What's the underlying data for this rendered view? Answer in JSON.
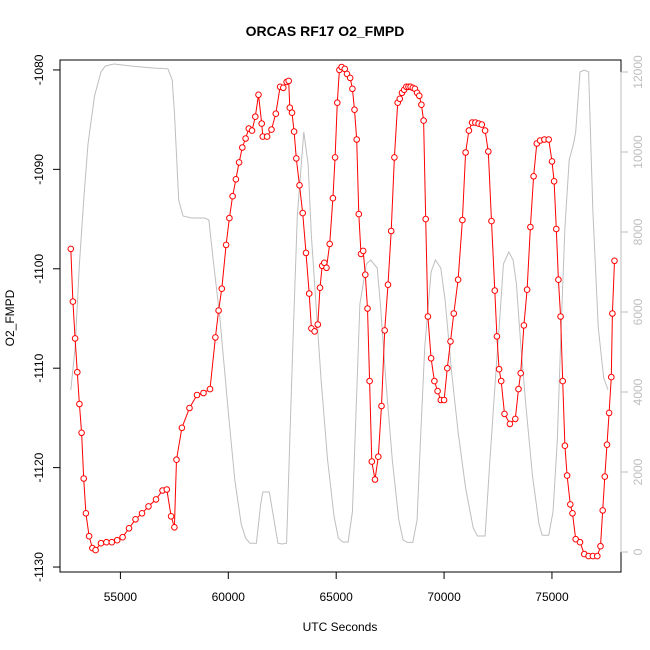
{
  "chart_data": {
    "type": "line",
    "title": "ORCAS RF17 O2_FMPD",
    "xlabel": "UTC Seconds",
    "ylabel": "O2_FMPD",
    "xlim": [
      52200,
      78200
    ],
    "ylim": [
      -1130.5,
      -1079
    ],
    "y2lim": [
      -500,
      12300
    ],
    "x_ticks": [
      55000,
      60000,
      65000,
      70000,
      75000
    ],
    "x_tick_labels": [
      "55000",
      "60000",
      "65000",
      "70000",
      "75000"
    ],
    "y_ticks": [
      -1080,
      -1090,
      -1100,
      -1110,
      -1120,
      -1130
    ],
    "y_tick_labels": [
      "-1080",
      "-1090",
      "-1100",
      "-1110",
      "-1120",
      "-1130"
    ],
    "y2_ticks": [
      0,
      2000,
      4000,
      6000,
      8000,
      10000,
      12000
    ],
    "y2_tick_labels": [
      "0",
      "2000",
      "4000",
      "6000",
      "8000",
      "10000",
      "12000"
    ],
    "grid": false,
    "series": [
      {
        "axis": "left",
        "color": "#ff0000",
        "marker": "circle-open",
        "points": [
          [
            52700,
            -1098
          ],
          [
            52800,
            -1103.3
          ],
          [
            52900,
            -1107
          ],
          [
            53000,
            -1110.4
          ],
          [
            53100,
            -1113.6
          ],
          [
            53200,
            -1116.5
          ],
          [
            53300,
            -1121.1
          ],
          [
            53400,
            -1124.6
          ],
          [
            53550,
            -1126.9
          ],
          [
            53700,
            -1128.1
          ],
          [
            53850,
            -1128.3
          ],
          [
            54100,
            -1127.6
          ],
          [
            54350,
            -1127.5
          ],
          [
            54600,
            -1127.5
          ],
          [
            54850,
            -1127.3
          ],
          [
            55100,
            -1127
          ],
          [
            55400,
            -1126.1
          ],
          [
            55700,
            -1125.2
          ],
          [
            56000,
            -1124.6
          ],
          [
            56300,
            -1123.9
          ],
          [
            56650,
            -1123.2
          ],
          [
            56950,
            -1122.3
          ],
          [
            57150,
            -1122.2
          ],
          [
            57350,
            -1124.9
          ],
          [
            57500,
            -1126
          ],
          [
            57600,
            -1119.2
          ],
          [
            57850,
            -1116
          ],
          [
            58200,
            -1114
          ],
          [
            58550,
            -1112.7
          ],
          [
            58850,
            -1112.5
          ],
          [
            59150,
            -1112.1
          ],
          [
            59400,
            -1106.9
          ],
          [
            59550,
            -1104.2
          ],
          [
            59700,
            -1102
          ],
          [
            59900,
            -1097.6
          ],
          [
            60050,
            -1094.9
          ],
          [
            60200,
            -1092.7
          ],
          [
            60350,
            -1091
          ],
          [
            60500,
            -1089.3
          ],
          [
            60650,
            -1087.8
          ],
          [
            60800,
            -1086.9
          ],
          [
            60950,
            -1085.9
          ],
          [
            61100,
            -1086.1
          ],
          [
            61250,
            -1084.7
          ],
          [
            61400,
            -1082.5
          ],
          [
            61550,
            -1085.4
          ],
          [
            61600,
            -1086.7
          ],
          [
            61800,
            -1086.7
          ],
          [
            62000,
            -1086
          ],
          [
            62200,
            -1084.4
          ],
          [
            62400,
            -1081.7
          ],
          [
            62550,
            -1081.8
          ],
          [
            62700,
            -1081.2
          ],
          [
            62800,
            -1081.1
          ],
          [
            62850,
            -1083.8
          ],
          [
            62950,
            -1084.3
          ],
          [
            63050,
            -1086.2
          ],
          [
            63150,
            -1088.9
          ],
          [
            63300,
            -1091.6
          ],
          [
            63450,
            -1094.4
          ],
          [
            63600,
            -1098.4
          ],
          [
            63750,
            -1102.5
          ],
          [
            63850,
            -1106
          ],
          [
            64000,
            -1106.3
          ],
          [
            64150,
            -1105.6
          ],
          [
            64250,
            -1101.9
          ],
          [
            64350,
            -1099.7
          ],
          [
            64450,
            -1099.4
          ],
          [
            64550,
            -1099.9
          ],
          [
            64700,
            -1097.5
          ],
          [
            64850,
            -1092.9
          ],
          [
            64950,
            -1088.8
          ],
          [
            65050,
            -1083.3
          ],
          [
            65150,
            -1080
          ],
          [
            65250,
            -1079.7
          ],
          [
            65400,
            -1079.9
          ],
          [
            65500,
            -1080.4
          ],
          [
            65650,
            -1080.8
          ],
          [
            65750,
            -1081.9
          ],
          [
            65850,
            -1084
          ],
          [
            65950,
            -1087
          ],
          [
            66050,
            -1094.5
          ],
          [
            66150,
            -1098.5
          ],
          [
            66250,
            -1098.2
          ],
          [
            66350,
            -1100.6
          ],
          [
            66450,
            -1104
          ],
          [
            66550,
            -1111.3
          ],
          [
            66650,
            -1119.4
          ],
          [
            66800,
            -1121.2
          ],
          [
            66950,
            -1118.9
          ],
          [
            67100,
            -1113.8
          ],
          [
            67250,
            -1106.2
          ],
          [
            67400,
            -1101.6
          ],
          [
            67550,
            -1096.2
          ],
          [
            67700,
            -1088.8
          ],
          [
            67850,
            -1083.3
          ],
          [
            67950,
            -1082.9
          ],
          [
            68050,
            -1082.3
          ],
          [
            68150,
            -1082
          ],
          [
            68250,
            -1081.7
          ],
          [
            68350,
            -1081.7
          ],
          [
            68450,
            -1081.7
          ],
          [
            68550,
            -1081.8
          ],
          [
            68650,
            -1081.9
          ],
          [
            68750,
            -1082.3
          ],
          [
            68850,
            -1082.6
          ],
          [
            68950,
            -1083.5
          ],
          [
            69050,
            -1085.1
          ],
          [
            69150,
            -1095
          ],
          [
            69250,
            -1104.8
          ],
          [
            69400,
            -1109
          ],
          [
            69550,
            -1111.3
          ],
          [
            69700,
            -1112.3
          ],
          [
            69850,
            -1113.2
          ],
          [
            70000,
            -1113.2
          ],
          [
            70150,
            -1110
          ],
          [
            70300,
            -1107.3
          ],
          [
            70450,
            -1104.5
          ],
          [
            70650,
            -1101.1
          ],
          [
            70850,
            -1095.1
          ],
          [
            71000,
            -1088.3
          ],
          [
            71150,
            -1086.1
          ],
          [
            71300,
            -1085.3
          ],
          [
            71450,
            -1085.3
          ],
          [
            71600,
            -1085.4
          ],
          [
            71750,
            -1085.5
          ],
          [
            71900,
            -1086.1
          ],
          [
            72050,
            -1088.2
          ],
          [
            72200,
            -1095.2
          ],
          [
            72350,
            -1102.2
          ],
          [
            72450,
            -1106.8
          ],
          [
            72550,
            -1110.1
          ],
          [
            72650,
            -1111.3
          ],
          [
            72800,
            -1114.6
          ],
          [
            73050,
            -1115.6
          ],
          [
            73300,
            -1115.1
          ],
          [
            73450,
            -1112.1
          ],
          [
            73550,
            -1110.5
          ],
          [
            73700,
            -1105.7
          ],
          [
            73850,
            -1102.1
          ],
          [
            74000,
            -1095.8
          ],
          [
            74150,
            -1090.7
          ],
          [
            74300,
            -1087.4
          ],
          [
            74450,
            -1087.1
          ],
          [
            74650,
            -1087
          ],
          [
            74850,
            -1087
          ],
          [
            75000,
            -1089.2
          ],
          [
            75100,
            -1091.2
          ],
          [
            75200,
            -1096
          ],
          [
            75300,
            -1101.1
          ],
          [
            75400,
            -1104.8
          ],
          [
            75500,
            -1111.3
          ],
          [
            75600,
            -1117.8
          ],
          [
            75700,
            -1120.8
          ],
          [
            75850,
            -1123.7
          ],
          [
            75950,
            -1124.6
          ],
          [
            76100,
            -1127.2
          ],
          [
            76300,
            -1127.5
          ],
          [
            76500,
            -1128.7
          ],
          [
            76700,
            -1128.9
          ],
          [
            76900,
            -1128.9
          ],
          [
            77100,
            -1128.9
          ],
          [
            77250,
            -1127.9
          ],
          [
            77350,
            -1124.3
          ],
          [
            77450,
            -1120.9
          ],
          [
            77550,
            -1117.7
          ],
          [
            77650,
            -1114.5
          ],
          [
            77750,
            -1110.9
          ],
          [
            77800,
            -1104.5
          ],
          [
            77900,
            -1099.2
          ]
        ]
      },
      {
        "axis": "right",
        "color": "#bebebe",
        "marker": "none",
        "points": [
          [
            52700,
            4050
          ],
          [
            52900,
            5100
          ],
          [
            53100,
            7200
          ],
          [
            53300,
            8800
          ],
          [
            53500,
            10200
          ],
          [
            53800,
            11400
          ],
          [
            54100,
            12000
          ],
          [
            54300,
            12150
          ],
          [
            54700,
            12200
          ],
          [
            55500,
            12150
          ],
          [
            56500,
            12100
          ],
          [
            57200,
            12080
          ],
          [
            57400,
            11800
          ],
          [
            57500,
            11000
          ],
          [
            57700,
            8800
          ],
          [
            57900,
            8400
          ],
          [
            58300,
            8350
          ],
          [
            58900,
            8350
          ],
          [
            59100,
            8300
          ],
          [
            59300,
            7300
          ],
          [
            59600,
            5900
          ],
          [
            60000,
            3500
          ],
          [
            60300,
            1800
          ],
          [
            60600,
            700
          ],
          [
            60800,
            350
          ],
          [
            61000,
            220
          ],
          [
            61300,
            220
          ],
          [
            61500,
            1200
          ],
          [
            61600,
            1500
          ],
          [
            61900,
            1500
          ],
          [
            62150,
            700
          ],
          [
            62300,
            220
          ],
          [
            62500,
            200
          ],
          [
            62700,
            220
          ],
          [
            62850,
            2800
          ],
          [
            63000,
            5300
          ],
          [
            63200,
            8400
          ],
          [
            63500,
            10500
          ],
          [
            63700,
            9700
          ],
          [
            63850,
            7900
          ],
          [
            64050,
            6300
          ],
          [
            64300,
            4300
          ],
          [
            64600,
            2300
          ],
          [
            64900,
            900
          ],
          [
            65100,
            350
          ],
          [
            65300,
            250
          ],
          [
            65550,
            250
          ],
          [
            65750,
            1000
          ],
          [
            65900,
            3200
          ],
          [
            66100,
            6200
          ],
          [
            66400,
            7200
          ],
          [
            66600,
            7300
          ],
          [
            66900,
            7100
          ],
          [
            67050,
            6200
          ],
          [
            67300,
            4300
          ],
          [
            67600,
            2300
          ],
          [
            67900,
            800
          ],
          [
            68100,
            300
          ],
          [
            68300,
            240
          ],
          [
            68550,
            240
          ],
          [
            68750,
            800
          ],
          [
            68900,
            2700
          ],
          [
            69100,
            5100
          ],
          [
            69400,
            7000
          ],
          [
            69600,
            7300
          ],
          [
            69850,
            7100
          ],
          [
            70050,
            6300
          ],
          [
            70350,
            4500
          ],
          [
            70650,
            3000
          ],
          [
            71000,
            1600
          ],
          [
            71350,
            600
          ],
          [
            71550,
            400
          ],
          [
            71900,
            400
          ],
          [
            72100,
            2100
          ],
          [
            72400,
            4500
          ],
          [
            72600,
            6000
          ],
          [
            72750,
            7200
          ],
          [
            73000,
            7500
          ],
          [
            73200,
            7300
          ],
          [
            73350,
            6700
          ],
          [
            73550,
            5200
          ],
          [
            73800,
            3600
          ],
          [
            74100,
            1900
          ],
          [
            74400,
            700
          ],
          [
            74550,
            420
          ],
          [
            74850,
            420
          ],
          [
            75050,
            1000
          ],
          [
            75250,
            2800
          ],
          [
            75450,
            6000
          ],
          [
            75600,
            8100
          ],
          [
            75800,
            9800
          ],
          [
            76000,
            10200
          ],
          [
            76100,
            10500
          ],
          [
            76300,
            12000
          ],
          [
            76500,
            12050
          ],
          [
            76700,
            12000
          ],
          [
            76900,
            8500
          ],
          [
            77150,
            5600
          ],
          [
            77400,
            4350
          ],
          [
            77600,
            4050
          ]
        ]
      }
    ]
  }
}
